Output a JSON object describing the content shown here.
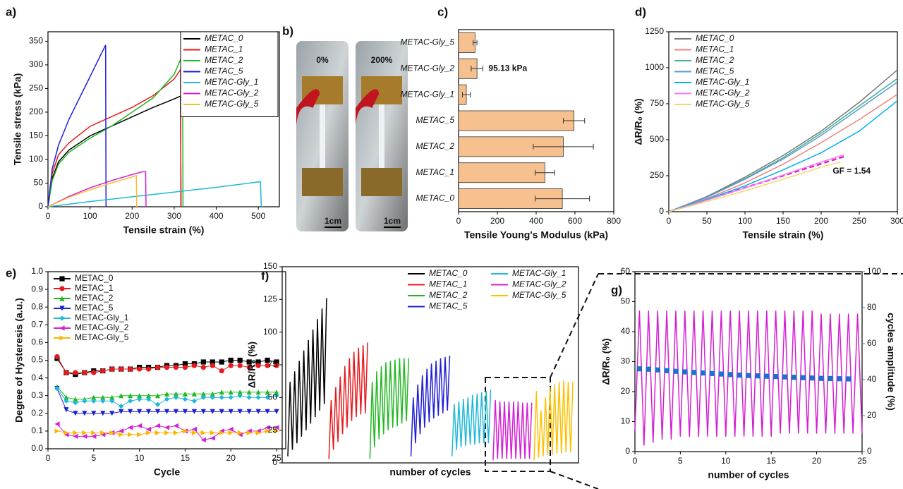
{
  "chart_data": [
    {
      "panel": "a)",
      "type": "line",
      "xlabel": "Tensile strain (%)",
      "ylabel": "Tensile stress (kPa)",
      "xlim": [
        0,
        550
      ],
      "ylim": [
        0,
        370
      ],
      "xticks": [
        0,
        100,
        200,
        300,
        400,
        500
      ],
      "yticks": [
        0,
        50,
        100,
        150,
        200,
        250,
        300,
        350
      ],
      "legend": "upper right",
      "legend_box": true,
      "legend_style": "italic",
      "series": [
        {
          "name": "METAC_0",
          "color": "#000000",
          "x": [
            0,
            10,
            25,
            50,
            100,
            150,
            200,
            250,
            300,
            315,
            316
          ],
          "values": [
            0,
            60,
            95,
            120,
            150,
            170,
            190,
            210,
            228,
            234,
            0
          ]
        },
        {
          "name": "METAC_1",
          "color": "#e8191c",
          "x": [
            0,
            10,
            25,
            50,
            100,
            150,
            200,
            250,
            300,
            315,
            316
          ],
          "values": [
            0,
            70,
            110,
            135,
            170,
            190,
            210,
            235,
            270,
            290,
            0
          ]
        },
        {
          "name": "METAC_2",
          "color": "#22b822",
          "x": [
            0,
            10,
            25,
            50,
            100,
            150,
            200,
            250,
            300,
            320,
            321
          ],
          "values": [
            0,
            55,
            90,
            115,
            145,
            170,
            200,
            230,
            280,
            322,
            0
          ]
        },
        {
          "name": "METAC_5",
          "color": "#1f1fd6",
          "x": [
            0,
            10,
            25,
            50,
            100,
            137,
            138
          ],
          "values": [
            0,
            80,
            130,
            185,
            275,
            342,
            0
          ]
        },
        {
          "name": "METAC-Gly_1",
          "color": "#1fb8d8",
          "x": [
            0,
            100,
            200,
            300,
            400,
            505,
            507
          ],
          "values": [
            0,
            11,
            21,
            31,
            41,
            53,
            0
          ]
        },
        {
          "name": "METAC-Gly_2",
          "color": "#d41fd4",
          "x": [
            0,
            50,
            100,
            150,
            200,
            225,
            232,
            233
          ],
          "values": [
            0,
            22,
            40,
            55,
            68,
            74,
            74,
            0
          ]
        },
        {
          "name": "METAC-Gly_5",
          "color": "#f5c02a",
          "x": [
            0,
            50,
            100,
            150,
            200,
            210,
            211
          ],
          "values": [
            0,
            20,
            36,
            50,
            63,
            66,
            0
          ]
        }
      ]
    },
    {
      "panel": "b)",
      "type": "image",
      "labels": [
        "0%",
        "200%"
      ],
      "scale_labels": [
        "1cm",
        "1cm"
      ]
    },
    {
      "panel": "c)",
      "type": "hbar",
      "xlabel": "Tensile Young's Modulus (kPa)",
      "xlim": [
        0,
        800
      ],
      "xticks": [
        0,
        200,
        400,
        600,
        800
      ],
      "color": "#f7c08f",
      "categories": [
        "METAC_0",
        "METAC_1",
        "METAC_2",
        "METAC_5",
        "METAC-Gly_1",
        "METAC-Gly_2",
        "METAC-Gly_5"
      ],
      "values": [
        535,
        445,
        540,
        595,
        40,
        95.13,
        85
      ],
      "errors": [
        140,
        50,
        155,
        55,
        20,
        30,
        10
      ],
      "value_labels": [
        null,
        null,
        null,
        null,
        null,
        "95.13 kPa",
        null
      ]
    },
    {
      "panel": "d)",
      "type": "line",
      "xlabel": "Tensile strain (%)",
      "ylabel": "ΔR/R₀ (%)",
      "xlim": [
        0,
        300
      ],
      "ylim": [
        0,
        1250
      ],
      "xticks": [
        0,
        50,
        100,
        150,
        200,
        250,
        300
      ],
      "yticks": [
        0,
        250,
        500,
        750,
        1000,
        1250
      ],
      "legend": "upper left",
      "legend_style": "italic",
      "annotation": "GF = 1.54",
      "annotation_color": "#e020d0",
      "series": [
        {
          "name": "METAC_0",
          "color": "#777777",
          "x": [
            0,
            50,
            100,
            150,
            200,
            250,
            300
          ],
          "values": [
            0,
            105,
            240,
            390,
            560,
            760,
            985
          ]
        },
        {
          "name": "METAC_1",
          "color": "#f08080",
          "x": [
            0,
            50,
            100,
            150,
            200,
            250,
            300
          ],
          "values": [
            0,
            90,
            200,
            330,
            480,
            640,
            815
          ]
        },
        {
          "name": "METAC_2",
          "color": "#3cb38a",
          "x": [
            0,
            50,
            100,
            150,
            200,
            250,
            300
          ],
          "values": [
            0,
            100,
            230,
            375,
            545,
            735,
            925
          ]
        },
        {
          "name": "METAC_5",
          "color": "#5b9bd5",
          "x": [
            0,
            50,
            100,
            150,
            200,
            250,
            300
          ],
          "values": [
            0,
            100,
            225,
            365,
            530,
            715,
            900
          ]
        },
        {
          "name": "METAC-Gly_1",
          "color": "#00b0f0",
          "x": [
            0,
            50,
            100,
            150,
            200,
            250,
            300
          ],
          "values": [
            0,
            85,
            180,
            290,
            410,
            560,
            770
          ]
        },
        {
          "name": "METAC-Gly_2",
          "color": "#ee82ee",
          "x": [
            0,
            50,
            100,
            150,
            200,
            230
          ],
          "values": [
            0,
            80,
            165,
            255,
            345,
            395
          ]
        },
        {
          "name": "METAC-Gly_5",
          "color": "#f5d76e",
          "x": [
            0,
            50,
            100,
            150,
            200,
            225
          ],
          "values": [
            0,
            70,
            145,
            225,
            310,
            345
          ]
        }
      ]
    },
    {
      "panel": "e)",
      "type": "line",
      "xlabel": "Cycle",
      "ylabel": "Degree of Hysteresis (a.u.)",
      "xlim": [
        0,
        26
      ],
      "ylim": [
        0,
        1
      ],
      "xticks": [
        0,
        5,
        10,
        15,
        20,
        25
      ],
      "yticks": [
        {
          "value": 0,
          "label": "0.0"
        },
        0.1,
        0.2,
        0.3,
        0.4,
        0.5,
        0.6,
        0.7,
        0.8,
        0.9,
        {
          "value": 1,
          "label": "1.0"
        }
      ],
      "legend": "upper left",
      "markers": true,
      "x": [
        1,
        2,
        3,
        4,
        5,
        6,
        7,
        8,
        9,
        10,
        11,
        12,
        13,
        14,
        15,
        16,
        17,
        18,
        19,
        20,
        21,
        22,
        23,
        24,
        25
      ],
      "series": [
        {
          "name": "METAC_0",
          "color": "#000000",
          "marker": "square",
          "values": [
            0.51,
            0.43,
            0.42,
            0.43,
            0.44,
            0.44,
            0.45,
            0.45,
            0.45,
            0.46,
            0.46,
            0.46,
            0.47,
            0.47,
            0.48,
            0.48,
            0.49,
            0.49,
            0.49,
            0.5,
            0.5,
            0.49,
            0.49,
            0.5,
            0.49
          ]
        },
        {
          "name": "METAC_1",
          "color": "#e8191c",
          "marker": "circle",
          "values": [
            0.52,
            0.43,
            0.43,
            0.43,
            0.43,
            0.44,
            0.45,
            0.45,
            0.45,
            0.45,
            0.45,
            0.46,
            0.46,
            0.46,
            0.46,
            0.47,
            0.46,
            0.47,
            0.44,
            0.47,
            0.47,
            0.46,
            0.47,
            0.47,
            0.47
          ]
        },
        {
          "name": "METAC_2",
          "color": "#22b822",
          "marker": "up",
          "values": [
            0.35,
            0.29,
            0.28,
            0.28,
            0.29,
            0.29,
            0.29,
            0.3,
            0.3,
            0.3,
            0.3,
            0.3,
            0.31,
            0.31,
            0.31,
            0.31,
            0.31,
            0.31,
            0.32,
            0.32,
            0.32,
            0.32,
            0.32,
            0.32,
            0.32
          ]
        },
        {
          "name": "METAC_5",
          "color": "#1f1fd6",
          "marker": "down",
          "values": [
            0.34,
            0.22,
            0.2,
            0.2,
            0.2,
            0.2,
            0.2,
            0.21,
            0.21,
            0.21,
            0.21,
            0.21,
            0.21,
            0.21,
            0.21,
            0.21,
            0.21,
            0.21,
            0.21,
            0.21,
            0.21,
            0.21,
            0.21,
            0.21,
            0.21
          ]
        },
        {
          "name": "METAC-Gly_1",
          "color": "#1fb8d8",
          "marker": "diamond",
          "values": [
            0.34,
            0.27,
            0.26,
            0.27,
            0.27,
            0.27,
            0.27,
            0.24,
            0.27,
            0.28,
            0.28,
            0.25,
            0.28,
            0.29,
            0.28,
            0.27,
            0.29,
            0.29,
            0.29,
            0.29,
            0.3,
            0.29,
            0.29,
            0.29,
            0.3
          ]
        },
        {
          "name": "METAC-Gly_2",
          "color": "#d41fd4",
          "marker": "left",
          "values": [
            0.14,
            0.08,
            0.07,
            0.07,
            0.07,
            0.08,
            0.09,
            0.1,
            0.12,
            0.13,
            0.11,
            0.13,
            0.12,
            0.13,
            0.1,
            0.11,
            0.05,
            0.06,
            0.1,
            0.11,
            0.08,
            0.1,
            0.1,
            0.12,
            0.12
          ]
        },
        {
          "name": "METAC-Gly_5",
          "color": "#ffb400",
          "marker": "right",
          "values": [
            0.1,
            0.09,
            0.09,
            0.09,
            0.09,
            0.09,
            0.09,
            0.08,
            0.08,
            0.08,
            0.09,
            0.09,
            0.09,
            0.09,
            0.1,
            0.09,
            0.09,
            0.09,
            0.09,
            0.09,
            0.09,
            0.09,
            0.09,
            0.1,
            0.1
          ]
        }
      ]
    },
    {
      "panel": "f)",
      "type": "line",
      "xlabel": "number of cycles",
      "ylabel": "ΔR/R₀ (%)",
      "ylim": [
        0,
        150
      ],
      "yticks": [
        0,
        25,
        50,
        75,
        100,
        125,
        150
      ],
      "legend": "upper right",
      "legend_columns": 2,
      "legend_style": "italic",
      "series": [
        {
          "name": "METAC_0",
          "color": "#000000",
          "values": [
            5,
            62,
            10,
            70,
            15,
            78,
            20,
            86,
            25,
            94,
            30,
            102,
            35,
            110,
            40,
            118,
            45,
            126
          ]
        },
        {
          "name": "METAC_1",
          "color": "#e8191c",
          "values": [
            3,
            48,
            10,
            58,
            16,
            66,
            22,
            74,
            27,
            80,
            32,
            85,
            35,
            88,
            37,
            90,
            38,
            92
          ]
        },
        {
          "name": "METAC_2",
          "color": "#22b822",
          "values": [
            3,
            62,
            12,
            70,
            18,
            74,
            22,
            77,
            25,
            78,
            27,
            79,
            28,
            80,
            30,
            80,
            32,
            80
          ]
        },
        {
          "name": "METAC_5",
          "color": "#1f1fd6",
          "values": [
            5,
            50,
            15,
            60,
            22,
            67,
            27,
            72,
            31,
            76,
            34,
            78,
            36,
            80,
            38,
            81,
            40,
            82
          ]
        },
        {
          "name": "METAC-Gly_1",
          "color": "#1fb8d8",
          "values": [
            5,
            45,
            10,
            47,
            12,
            49,
            13,
            50,
            14,
            52,
            14,
            53,
            15,
            54,
            15,
            55,
            15,
            56
          ]
        },
        {
          "name": "METAC-Gly_2",
          "color": "#d41fd4",
          "values": [
            2,
            48,
            3,
            47,
            3,
            47,
            3,
            47,
            3,
            47,
            3,
            47,
            3,
            46,
            3,
            46,
            3,
            46
          ]
        },
        {
          "name": "METAC-Gly_5",
          "color": "#ffc000",
          "values": [
            2,
            55,
            4,
            40,
            5,
            50,
            6,
            58,
            6,
            60,
            7,
            62,
            7,
            63,
            8,
            62,
            8,
            62
          ]
        }
      ]
    },
    {
      "panel": "g)",
      "type": "line",
      "xlabel": "number of cycles",
      "ylabel": "ΔR/R₀ (%)",
      "y2label": "cycles amplitude (%)",
      "y2color": "#1e7fd8",
      "xlim": [
        0,
        25
      ],
      "ylim": [
        0,
        60
      ],
      "y2lim": [
        0,
        100
      ],
      "xticks": [
        0,
        5,
        10,
        15,
        20,
        25
      ],
      "yticks": [
        0,
        10,
        20,
        30,
        40,
        50,
        60
      ],
      "y2ticks": [
        0,
        20,
        40,
        60,
        80,
        100
      ],
      "series": [
        {
          "color": "#d41fd4",
          "x": [
            0,
            0.5,
            1,
            1.5,
            2,
            2.5,
            3,
            3.5,
            4,
            4.5,
            5,
            5.5,
            6,
            6.5,
            7,
            7.5,
            8,
            8.5,
            9,
            9.5,
            10,
            10.5,
            11,
            11.5,
            12,
            12.5,
            13,
            13.5,
            14,
            14.5,
            15,
            15.5,
            16,
            16.5,
            17,
            17.5,
            18,
            18.5,
            19,
            19.5,
            20,
            20.5,
            21,
            21.5,
            22,
            22.5,
            23,
            23.5,
            24,
            24.5,
            25
          ],
          "values": [
            7,
            47,
            2,
            47,
            3,
            47,
            4,
            47,
            4,
            47,
            5,
            47,
            5,
            47,
            5,
            47,
            5,
            47,
            5,
            47,
            5,
            47,
            5,
            47,
            5,
            47,
            5,
            47,
            5,
            47,
            5,
            47,
            6,
            47,
            6,
            47,
            6,
            47,
            6,
            47,
            6,
            46,
            6,
            46,
            6,
            46,
            6,
            46,
            6,
            46,
            6
          ]
        },
        {
          "color": "#1e6fd0",
          "axis": "y2",
          "marker": "square",
          "x": [
            0.5,
            1.5,
            2.5,
            3.5,
            4.5,
            5.5,
            6.5,
            7.5,
            8.5,
            9.5,
            10.5,
            11.5,
            12.5,
            13.5,
            14.5,
            15.5,
            16.5,
            17.5,
            18.5,
            19.5,
            20.5,
            21.5,
            22.5,
            23.5
          ],
          "values": [
            46,
            45.8,
            45.4,
            45,
            44.6,
            44.3,
            44,
            43.7,
            43.4,
            43.1,
            42.8,
            42.5,
            42.3,
            42.1,
            41.9,
            41.7,
            41.5,
            41.3,
            41.1,
            40.9,
            40.7,
            40.6,
            40.5,
            40.4
          ]
        }
      ]
    }
  ]
}
